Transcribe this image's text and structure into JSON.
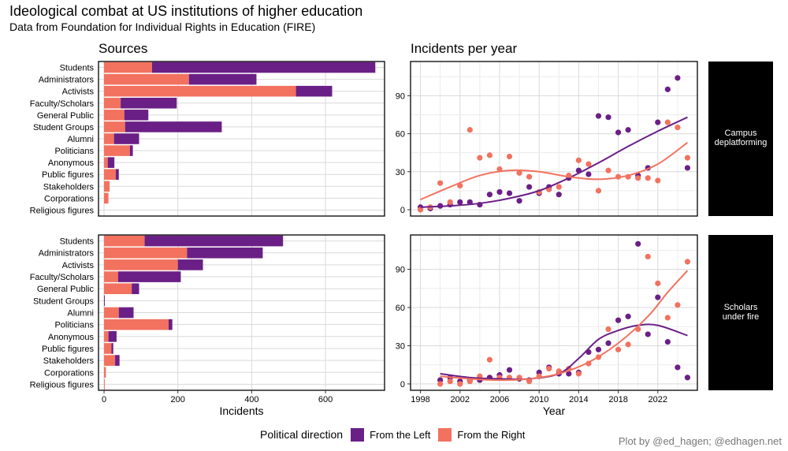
{
  "title": "Ideological combat at US institutions of higher education",
  "subtitle": "Data from Foundation for Individual Rights in Education (FIRE)",
  "credit": "Plot by @ed_hagen; @edhagen.net",
  "colors": {
    "left": "#6a1f86",
    "right": "#f2725f",
    "strip": "#000000",
    "grid": "#d9d9d9"
  },
  "legend": {
    "title": "Political direction",
    "items": [
      {
        "key": "left",
        "label": "From the Left"
      },
      {
        "key": "right",
        "label": "From the Right"
      }
    ]
  },
  "panels": {
    "sources_title": "Sources",
    "incidents_title": "Incidents per year",
    "rows": [
      {
        "strip_line1": "Campus",
        "strip_line2": "deplatforming"
      },
      {
        "strip_line1": "Scholars",
        "strip_line2": "under fire"
      }
    ]
  },
  "chart_data": [
    {
      "type": "bar",
      "panel": "Sources",
      "facet": "Campus deplatforming",
      "stacked": true,
      "orientation": "horizontal",
      "categories": [
        "Students",
        "Administrators",
        "Activists",
        "Faculty/Scholars",
        "General Public",
        "Student Groups",
        "Alumni",
        "Politicians",
        "Anonymous",
        "Public figures",
        "Stakeholders",
        "Corporations",
        "Religious figures"
      ],
      "series": [
        {
          "name": "From the Right",
          "values": [
            130,
            230,
            520,
            45,
            55,
            57,
            27,
            70,
            10,
            32,
            15,
            12,
            0
          ]
        },
        {
          "name": "From the Left",
          "values": [
            605,
            183,
            98,
            152,
            65,
            262,
            68,
            8,
            18,
            8,
            0,
            0,
            0
          ]
        }
      ],
      "xlabel": "Incidents",
      "xlim": [
        -15,
        760
      ],
      "xticks": [
        0,
        200,
        400,
        600
      ]
    },
    {
      "type": "bar",
      "panel": "Sources",
      "facet": "Scholars under fire",
      "stacked": true,
      "orientation": "horizontal",
      "categories": [
        "Students",
        "Administrators",
        "Activists",
        "Faculty/Scholars",
        "General Public",
        "Student Groups",
        "Alumni",
        "Politicians",
        "Anonymous",
        "Public figures",
        "Stakeholders",
        "Corporations",
        "Religious figures"
      ],
      "series": [
        {
          "name": "From the Right",
          "values": [
            110,
            225,
            200,
            38,
            75,
            0,
            40,
            175,
            12,
            20,
            30,
            5,
            2
          ]
        },
        {
          "name": "From the Left",
          "values": [
            375,
            205,
            68,
            170,
            20,
            2,
            40,
            10,
            22,
            5,
            12,
            0,
            0
          ]
        }
      ],
      "xlabel": "Incidents",
      "xlim": [
        -15,
        760
      ],
      "xticks": [
        0,
        200,
        400,
        600
      ]
    },
    {
      "type": "scatter",
      "panel": "Incidents per year",
      "facet": "Campus deplatforming",
      "trend": "smoothed",
      "xlabel": "Year",
      "ylabel": "",
      "xlim": [
        1997,
        2026
      ],
      "ylim": [
        -5,
        117
      ],
      "xticks": [
        1998,
        2002,
        2006,
        2010,
        2014,
        2018,
        2022
      ],
      "yticks": [
        0,
        30,
        60,
        90
      ],
      "series": [
        {
          "name": "From the Left",
          "x": [
            1998,
            1999,
            2000,
            2001,
            2002,
            2003,
            2004,
            2005,
            2006,
            2007,
            2008,
            2009,
            2010,
            2011,
            2012,
            2013,
            2014,
            2015,
            2016,
            2017,
            2018,
            2019,
            2020,
            2021,
            2022,
            2023,
            2024,
            2025
          ],
          "y": [
            2,
            1,
            3,
            4,
            6,
            6,
            4,
            12,
            14,
            13,
            7,
            18,
            13,
            18,
            12,
            25,
            31,
            28,
            74,
            73,
            61,
            63,
            27,
            33,
            69,
            95,
            104,
            33
          ],
          "trend_x": [
            1998,
            2001,
            2004,
            2007,
            2010,
            2013,
            2016,
            2019,
            2022,
            2025
          ],
          "trend_y": [
            2,
            3,
            5,
            9,
            15,
            25,
            37,
            50,
            62,
            73
          ]
        },
        {
          "name": "From the Right",
          "x": [
            1998,
            1999,
            2000,
            2001,
            2002,
            2003,
            2004,
            2005,
            2006,
            2007,
            2008,
            2009,
            2010,
            2011,
            2012,
            2013,
            2014,
            2015,
            2016,
            2017,
            2018,
            2019,
            2020,
            2021,
            2022,
            2023,
            2024,
            2025
          ],
          "y": [
            0,
            2,
            21,
            6,
            19,
            63,
            41,
            43,
            32,
            42,
            29,
            26,
            14,
            16,
            18,
            27,
            39,
            36,
            15,
            31,
            26,
            26,
            25,
            25,
            23,
            69,
            65,
            41
          ],
          "trend_x": [
            1998,
            2001,
            2004,
            2007,
            2010,
            2013,
            2016,
            2019,
            2022,
            2025
          ],
          "trend_y": [
            8,
            18,
            27,
            31,
            30,
            26,
            24,
            27,
            36,
            53
          ]
        }
      ]
    },
    {
      "type": "scatter",
      "panel": "Incidents per year",
      "facet": "Scholars under fire",
      "trend": "smoothed",
      "xlabel": "Year",
      "ylabel": "",
      "xlim": [
        1997,
        2026
      ],
      "ylim": [
        -5,
        117
      ],
      "xticks": [
        1998,
        2002,
        2006,
        2010,
        2014,
        2018,
        2022
      ],
      "yticks": [
        0,
        30,
        60,
        90
      ],
      "series": [
        {
          "name": "From the Left",
          "x": [
            2000,
            2001,
            2002,
            2003,
            2004,
            2005,
            2006,
            2007,
            2008,
            2009,
            2010,
            2011,
            2012,
            2013,
            2014,
            2015,
            2016,
            2017,
            2018,
            2019,
            2020,
            2021,
            2022,
            2023,
            2024,
            2025
          ],
          "y": [
            3,
            5,
            2,
            3,
            3,
            5,
            7,
            11,
            4,
            3,
            9,
            13,
            8,
            8,
            9,
            25,
            27,
            32,
            50,
            53,
            110,
            39,
            68,
            33,
            13,
            5
          ],
          "trend_x": [
            2000,
            2003,
            2006,
            2009,
            2012,
            2014,
            2016,
            2018,
            2020,
            2022,
            2025
          ],
          "trend_y": [
            8,
            5,
            4,
            4,
            8,
            20,
            35,
            42,
            46,
            46,
            38
          ]
        },
        {
          "name": "From the Right",
          "x": [
            2000,
            2001,
            2002,
            2003,
            2004,
            2005,
            2006,
            2007,
            2008,
            2009,
            2010,
            2011,
            2012,
            2013,
            2014,
            2015,
            2016,
            2017,
            2018,
            2019,
            2020,
            2021,
            2022,
            2023,
            2024,
            2025
          ],
          "y": [
            0,
            2,
            0,
            2,
            6,
            19,
            5,
            5,
            5,
            2,
            6,
            12,
            10,
            12,
            8,
            16,
            21,
            43,
            27,
            31,
            43,
            100,
            79,
            52,
            62,
            96
          ],
          "trend_x": [
            2000,
            2003,
            2006,
            2009,
            2012,
            2015,
            2018,
            2021,
            2023,
            2025
          ],
          "trend_y": [
            6,
            4,
            3,
            4,
            8,
            17,
            32,
            53,
            72,
            89
          ]
        }
      ]
    }
  ]
}
